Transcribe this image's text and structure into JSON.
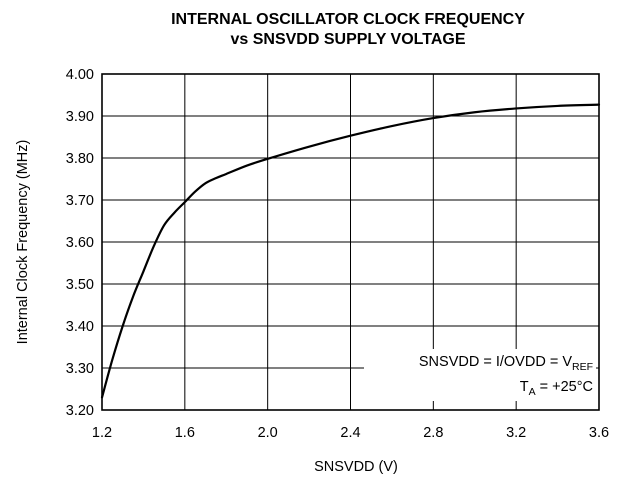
{
  "chart_data": {
    "type": "line",
    "title": "INTERNAL OSCILLATOR CLOCK FREQUENCY",
    "subtitle": "vs SNSVDD SUPPLY VOLTAGE",
    "xlabel": "SNSVDD (V)",
    "ylabel": "Internal Clock Frequency (MHz)",
    "xlim": [
      1.2,
      3.6
    ],
    "ylim": [
      3.2,
      4.0
    ],
    "x_ticks": [
      "1.2",
      "1.6",
      "2.0",
      "2.4",
      "2.8",
      "3.2",
      "3.6"
    ],
    "y_ticks": [
      "3.20",
      "3.30",
      "3.40",
      "3.50",
      "3.60",
      "3.70",
      "3.80",
      "3.90",
      "4.00"
    ],
    "grid": true,
    "annotations": {
      "line1_main": "SNSVDD = I/OVDD = V",
      "line1_sub": "REF",
      "line2_main": "T",
      "line2_sub": "A",
      "line2_rest": " = +25°C"
    },
    "series": [
      {
        "x": [
          1.2,
          1.25,
          1.3,
          1.35,
          1.4,
          1.45,
          1.5,
          1.55,
          1.6,
          1.65,
          1.7,
          1.75,
          1.8,
          1.9,
          2.0,
          2.2,
          2.4,
          2.6,
          2.8,
          3.0,
          3.2,
          3.4,
          3.6
        ],
        "y": [
          3.23,
          3.32,
          3.4,
          3.47,
          3.53,
          3.59,
          3.64,
          3.67,
          3.695,
          3.72,
          3.74,
          3.752,
          3.762,
          3.782,
          3.798,
          3.827,
          3.853,
          3.876,
          3.895,
          3.909,
          3.918,
          3.924,
          3.927
        ]
      }
    ]
  }
}
